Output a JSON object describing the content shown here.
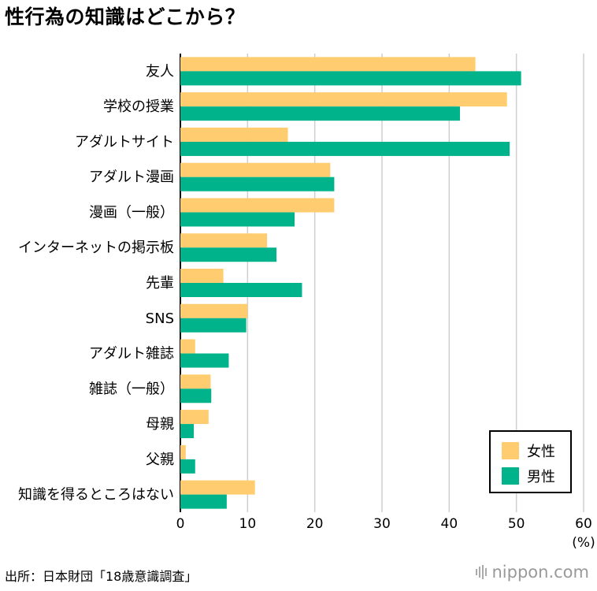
{
  "title": "性行為の知識はどこから？",
  "source": "出所：日本財団「18歳意識調査」",
  "brand": "nippon.com",
  "chart_data": {
    "type": "bar",
    "orientation": "horizontal",
    "categories": [
      "友人",
      "学校の授業",
      "アダルトサイト",
      "アダルト漫画",
      "漫画（一般）",
      "インターネットの掲示板",
      "先輩",
      "SNS",
      "アダルト雑誌",
      "雑誌（一般）",
      "母親",
      "父親",
      "知識を得るところはない"
    ],
    "series": [
      {
        "name": "女性",
        "color": "#FFCC70",
        "values": [
          43.9,
          48.6,
          16.0,
          22.3,
          22.9,
          12.9,
          6.4,
          10.0,
          2.2,
          4.5,
          4.2,
          0.8,
          11.1
        ]
      },
      {
        "name": "男性",
        "color": "#00B38A",
        "values": [
          50.7,
          41.6,
          49.0,
          22.9,
          17.0,
          14.3,
          18.1,
          9.8,
          7.2,
          4.6,
          2.0,
          2.2,
          6.9
        ]
      }
    ],
    "xlim": [
      0,
      60
    ],
    "xticks": [
      "0",
      "10",
      "20",
      "30",
      "40",
      "50",
      "60"
    ],
    "xunit": "(%)",
    "grid": true,
    "legend_position": "bottom-right"
  }
}
